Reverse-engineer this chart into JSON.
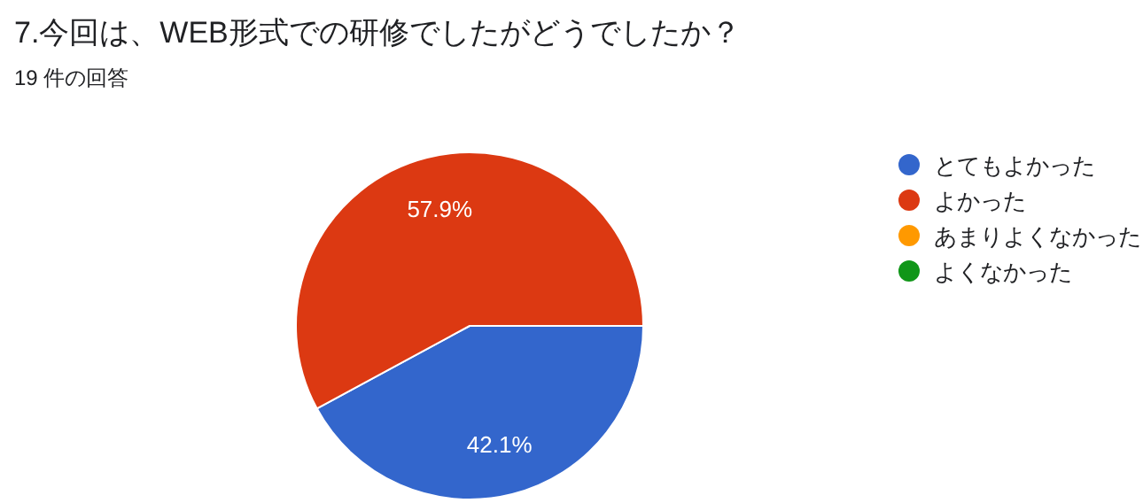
{
  "chart_data": {
    "type": "pie",
    "title": "7.今回は、WEB形式での研修でしたがどうでしたか？",
    "subtitle": "19 件の回答",
    "categories": [
      "とてもよかった",
      "よかった",
      "あまりよくなかった",
      "よくなかった"
    ],
    "values": [
      42.1,
      57.9,
      0,
      0
    ],
    "colors": [
      "#3366cc",
      "#dc3912",
      "#ff9900",
      "#109618"
    ],
    "value_labels": [
      "42.1%",
      "57.9%",
      null,
      null
    ],
    "legend": "right"
  }
}
